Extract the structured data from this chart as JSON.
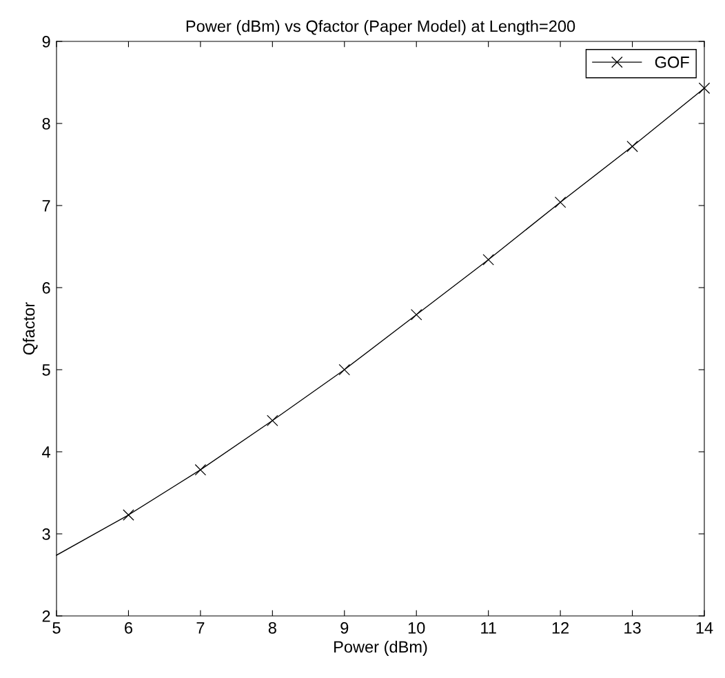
{
  "chart_data": {
    "type": "line",
    "title": "Power (dBm) vs Qfactor (Paper Model) at Length=200",
    "xlabel": "Power (dBm)",
    "ylabel": "Qfactor",
    "xlim": [
      5,
      14
    ],
    "xticks": [
      5,
      6,
      7,
      8,
      9,
      10,
      11,
      12,
      13,
      14
    ],
    "ylim": [
      2,
      9
    ],
    "yticks": [
      2,
      3,
      4,
      5,
      6,
      7,
      8,
      9
    ],
    "grid": false,
    "legend": "top right",
    "line_style": "solid",
    "series": [
      {
        "name": "GOF",
        "color": "#000000",
        "marker": "cross",
        "x": [
          6,
          7,
          8,
          9,
          10,
          11,
          12,
          13,
          14
        ],
        "values": [
          3.23,
          3.78,
          4.38,
          5.0,
          5.67,
          6.34,
          7.04,
          7.72,
          8.43
        ]
      },
      {
        "color": "#000000",
        "marker": "none",
        "x": [
          5,
          6
        ],
        "values": [
          2.74,
          3.23
        ]
      }
    ]
  }
}
